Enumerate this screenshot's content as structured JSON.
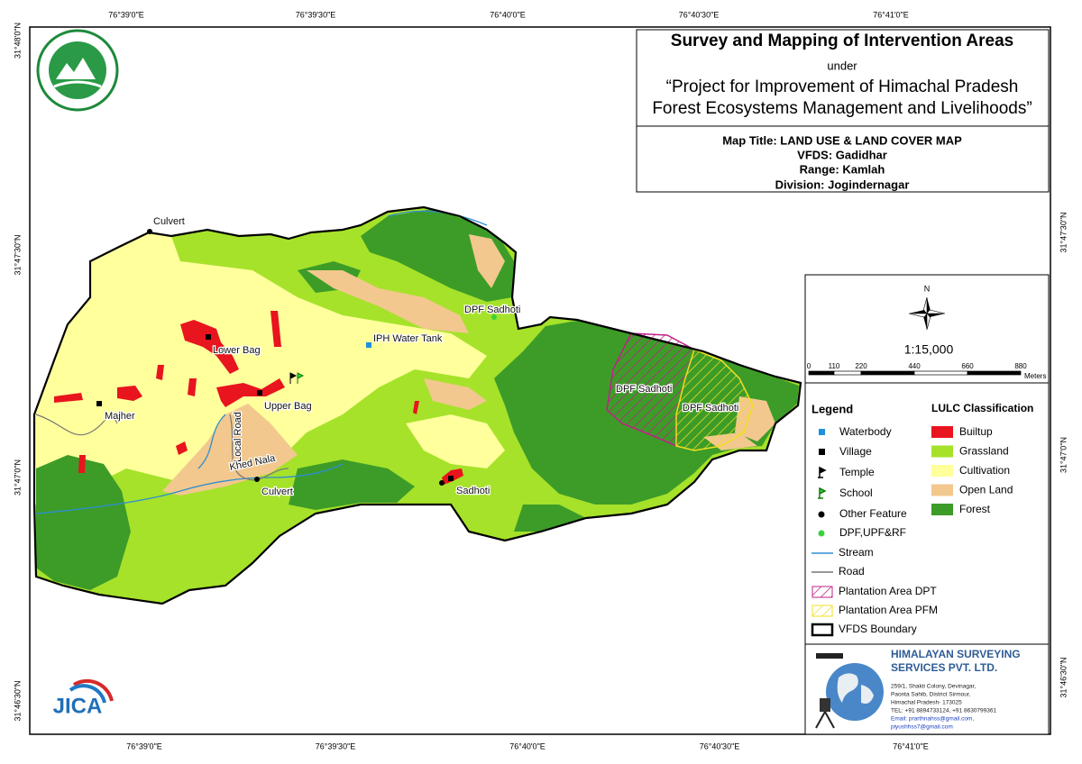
{
  "map_grid": {
    "top_labels": [
      "76°39'0\"E",
      "76°39'30\"E",
      "76°40'0\"E",
      "76°40'30\"E",
      "76°41'0\"E"
    ],
    "bottom_labels": [
      "76°39'0\"E",
      "76°39'30\"E",
      "76°40'0\"E",
      "76°40'30\"E",
      "76°41'0\"E"
    ],
    "left_labels": [
      "31°48'0\"N",
      "31°47'30\"N",
      "31°47'0\"N",
      "31°46'30\"N"
    ],
    "right_labels": [
      "31°47'30\"N",
      "31°47'0\"N",
      "31°46'30\"N"
    ]
  },
  "title_block": {
    "title": "Survey and Mapping of Intervention Areas",
    "subtitle": "under",
    "project_line1": "“Project for Improvement of Himachal Pradesh",
    "project_line2": "Forest Ecosystems Management and Livelihoods”"
  },
  "map_info": {
    "map_title": "Map Title: LAND USE & LAND COVER MAP",
    "vfds": "VFDS: Gadidhar",
    "range": "Range: Kamlah",
    "division": "Division: Jogindernagar"
  },
  "north_arrow": "N",
  "scale": {
    "ratio": "1:15,000",
    "ticks": [
      "0",
      "110",
      "220",
      "440",
      "660",
      "880"
    ],
    "unit": "Meters"
  },
  "legend": {
    "title": "Legend",
    "items": [
      "Waterbody",
      "Village",
      "Temple",
      "School",
      "Other Feature",
      "DPF,UPF&RF",
      "Stream",
      "Road",
      "Plantation Area DPT",
      "Plantation Area PFM",
      "VFDS Boundary"
    ]
  },
  "lulc": {
    "title": "LULC Classification",
    "classes": [
      {
        "name": "Builtup",
        "color": "#e8141e"
      },
      {
        "name": "Grassland",
        "color": "#a6e22a"
      },
      {
        "name": "Cultivation",
        "color": "#ffff9c"
      },
      {
        "name": "Open Land",
        "color": "#f2c88e"
      },
      {
        "name": "Forest",
        "color": "#3d9c28"
      }
    ]
  },
  "map_labels": [
    "Culvert",
    "Majher",
    "Lower Bag",
    "Upper Bag",
    "IPH Water Tank",
    "DPF Sadhoti",
    "DPF Sadhoti",
    "DPF Sadhoti",
    "Local Road",
    "Khed Nala",
    "Culvert",
    "Sadhoti"
  ],
  "company": {
    "name_line1": "HIMALAYAN SURVEYING",
    "name_line2": "SERVICES PVT. LTD.",
    "address": [
      "259/1, Shakti Colony, Devinagar,",
      "Paonta Sahib, District Sirmour,",
      "Himachal Pradesh- 173025",
      "TEL: +91 8894733124, +91 8630799361",
      "Email: prarthnahss@gmail.com,",
      "piyushhss7@gmail.com"
    ]
  },
  "logos": {
    "jica": "JICA"
  }
}
